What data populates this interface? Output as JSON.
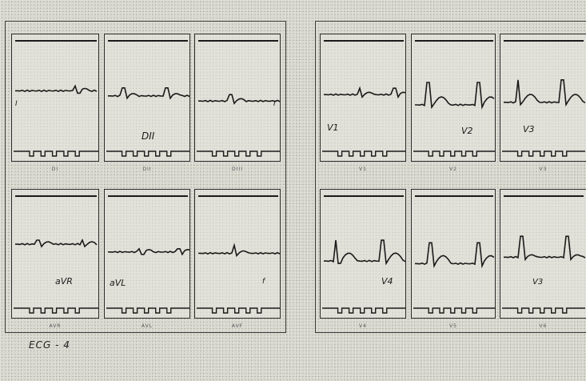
{
  "figure": {
    "caption": "ECG - 4",
    "left_panel": {
      "leads": [
        {
          "id": "lead-1",
          "label": "I",
          "code": "DI"
        },
        {
          "id": "lead-2",
          "label": "DII",
          "code": "DII"
        },
        {
          "id": "lead-3",
          "label": "I",
          "code": "DIII"
        },
        {
          "id": "lead-avr",
          "label": "aVR",
          "code": "AVR"
        },
        {
          "id": "lead-avl",
          "label": "aVL",
          "code": "AVL"
        },
        {
          "id": "lead-avf",
          "label": "f",
          "code": "AVF"
        }
      ]
    },
    "right_panel": {
      "leads": [
        {
          "id": "lead-v1",
          "label": "V1",
          "code": "V1"
        },
        {
          "id": "lead-v2",
          "label": "V2",
          "code": "V2"
        },
        {
          "id": "lead-v3",
          "label": "V3",
          "code": "V3"
        },
        {
          "id": "lead-v4",
          "label": "V4",
          "code": "V4"
        },
        {
          "id": "lead-v5",
          "label": "",
          "code": "V5"
        },
        {
          "id": "lead-v6",
          "label": "V3",
          "code": "V6"
        }
      ]
    }
  },
  "colors": {
    "paper": "#d8d8ce",
    "ink": "#1a1a1a"
  }
}
